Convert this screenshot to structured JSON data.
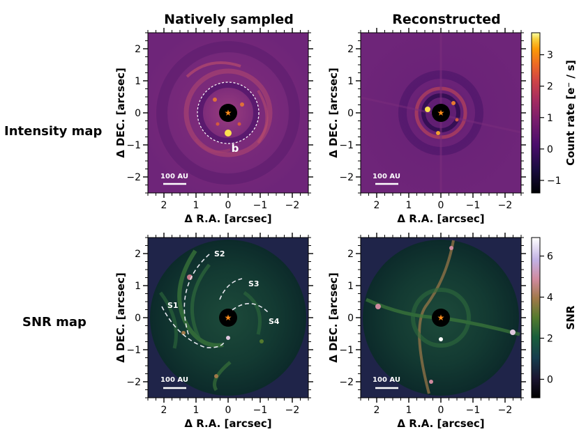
{
  "chart_data": {
    "type": "heatmap",
    "column_titles": [
      "Natively sampled",
      "Reconstructed"
    ],
    "row_titles": [
      "Intensity map",
      "SNR map"
    ],
    "xlabel": "Δ R.A. [arcsec]",
    "ylabel": "Δ DEC. [arcsec]",
    "xlim": [
      2.5,
      -2.5
    ],
    "ylim": [
      -2.5,
      2.5
    ],
    "xticks": [
      2,
      1,
      0,
      -1,
      -2
    ],
    "yticks": [
      -2,
      -1,
      0,
      1,
      2
    ],
    "scale_bar_label": "100 AU",
    "scale_bar_arcsec": 0.75,
    "star_marker": "orange-star",
    "intensity_colorbar": {
      "label": "Count rate [e⁻ / s]",
      "ticks": [
        -1,
        0,
        1,
        2,
        3
      ],
      "range": [
        -1.4,
        3.7
      ],
      "colormap": "inferno"
    },
    "snr_colorbar": {
      "label": "SNR",
      "ticks": [
        0,
        2,
        4,
        6
      ],
      "range": [
        -0.9,
        6.9
      ],
      "colormap": "cubehelix"
    },
    "annotations": {
      "planet_label": "b",
      "planet_position": [
        0.0,
        -0.62
      ],
      "circle_radius_arcsec": 0.95,
      "spiral_labels": [
        {
          "text": "S1",
          "x": 1.75,
          "y": 0.4
        },
        {
          "text": "S2",
          "x": 0.25,
          "y": 2.0
        },
        {
          "text": "S3",
          "x": -0.8,
          "y": 1.05
        },
        {
          "text": "S4",
          "x": -1.4,
          "y": -0.1
        }
      ]
    },
    "tick_labels": {
      "x": [
        "2",
        "1",
        "0",
        "−1",
        "−2"
      ],
      "y": [
        "−2",
        "−1",
        "0",
        "1",
        "2"
      ]
    }
  }
}
